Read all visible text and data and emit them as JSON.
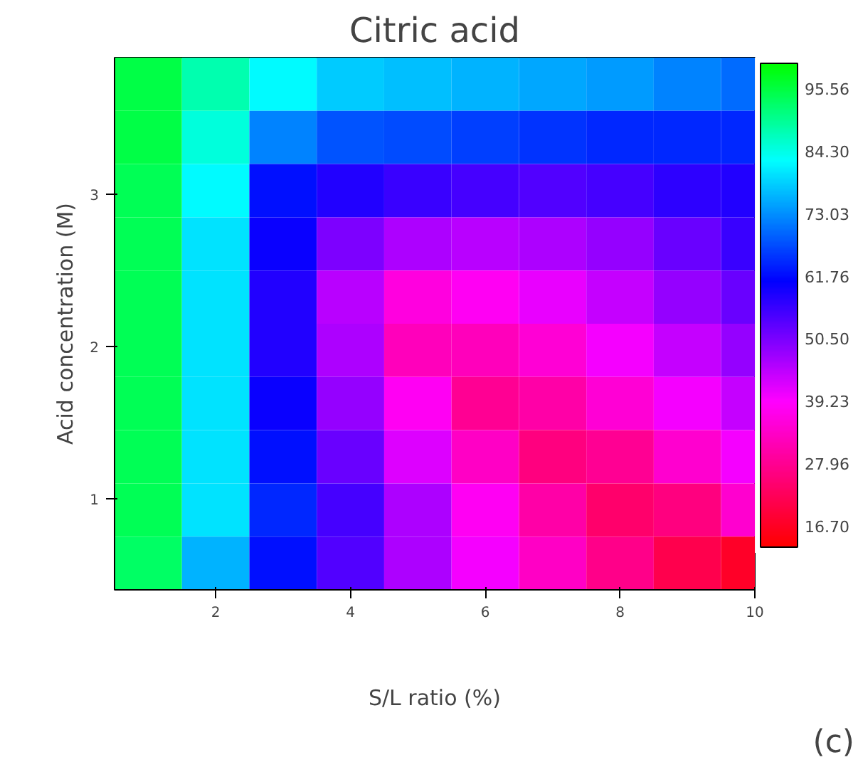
{
  "chart_data": {
    "type": "heatmap",
    "title": "Citric acid",
    "xlabel": "S/L ratio (%)",
    "ylabel": "Acid concentration (M)",
    "x": [
      1,
      2,
      3,
      4,
      5,
      6,
      7,
      8,
      9,
      10
    ],
    "y": [
      3.725,
      3.375,
      3.025,
      2.675,
      2.325,
      1.975,
      1.625,
      1.275,
      0.925,
      0.575
    ],
    "cells": [
      [
        95,
        88,
        82,
        78,
        77,
        76,
        75,
        74,
        72,
        70
      ],
      [
        95,
        85,
        72,
        68,
        67,
        66,
        65,
        64,
        64,
        64
      ],
      [
        94,
        82,
        62,
        58,
        56,
        55,
        54,
        55,
        57,
        58
      ],
      [
        94,
        80,
        60,
        50,
        46,
        45,
        46,
        48,
        52,
        56
      ],
      [
        94,
        80,
        58,
        45,
        36,
        38,
        41,
        44,
        48,
        52
      ],
      [
        94,
        80,
        58,
        46,
        32,
        32,
        35,
        40,
        44,
        48
      ],
      [
        94,
        80,
        60,
        48,
        38,
        28,
        30,
        35,
        40,
        44
      ],
      [
        94,
        80,
        62,
        52,
        42,
        33,
        26,
        28,
        34,
        40
      ],
      [
        94,
        80,
        64,
        55,
        46,
        38,
        30,
        24,
        26,
        34
      ],
      [
        93,
        76,
        62,
        54,
        46,
        40,
        33,
        27,
        21,
        17
      ]
    ],
    "xlim": [
      0.5,
      10
    ],
    "xticks": [
      2,
      4,
      6,
      8,
      10
    ],
    "ylim": [
      0.4,
      3.9
    ],
    "yticks": [
      1,
      2,
      3
    ],
    "clim": [
      12.9,
      100
    ],
    "cticks": [
      {
        "value": 16.7,
        "label": "16.70"
      },
      27.96,
      39.23,
      {
        "value": 50.5,
        "label": "50.50"
      },
      61.76,
      73.03,
      {
        "value": 84.3,
        "label": "84.30"
      },
      95.56
    ],
    "annotations": [
      "(c)"
    ]
  }
}
